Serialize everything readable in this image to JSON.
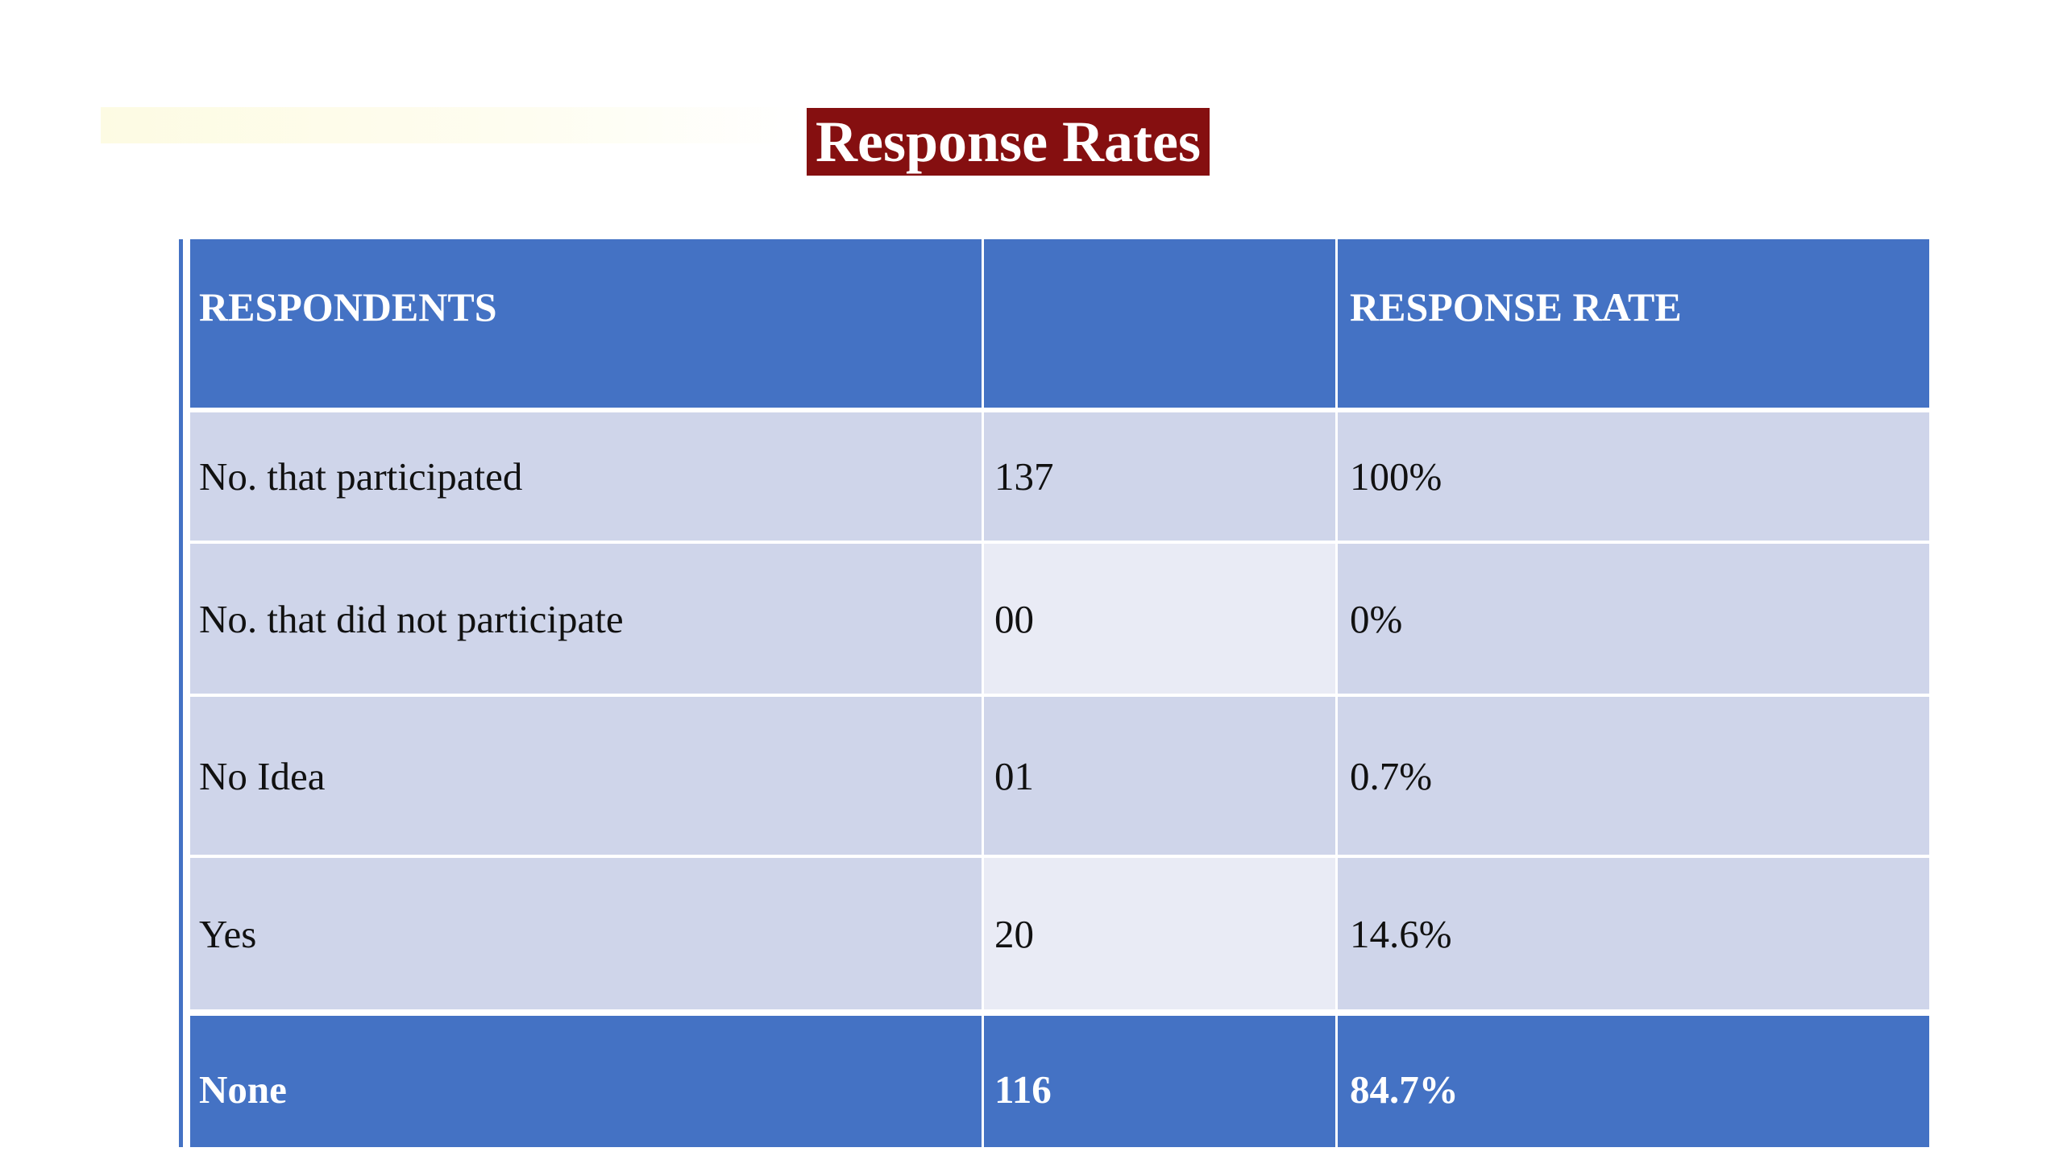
{
  "title": "Response Rates",
  "table": {
    "header": [
      "RESPONDENTS",
      "",
      "RESPONSE RATE"
    ],
    "rows": [
      [
        "No. that participated",
        "137",
        "100%"
      ],
      [
        "No. that did not participate",
        "00",
        "0%"
      ],
      [
        "No Idea",
        "01",
        "0.7%"
      ],
      [
        "Yes",
        "20",
        "14.6%"
      ]
    ],
    "footer": [
      "None",
      "116",
      "84.7%"
    ]
  },
  "colors": {
    "title_bg": "#850f10",
    "header_bg": "#4472c4",
    "row_dark": "#cfd5ea",
    "row_light": "#e9ebf5"
  }
}
